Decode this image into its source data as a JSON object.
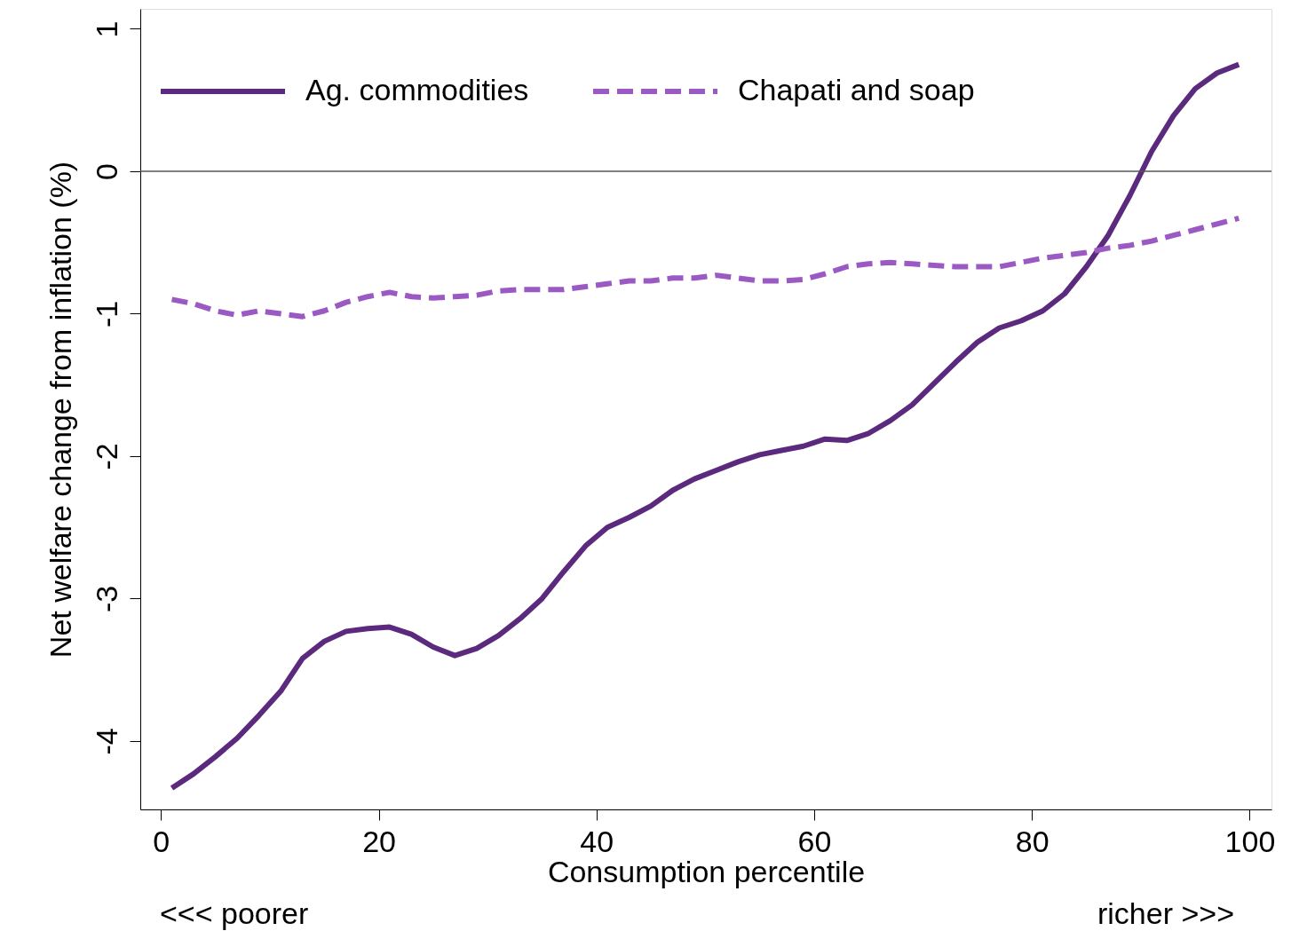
{
  "chart_data": {
    "type": "line",
    "xlabel": "Consumption percentile",
    "ylabel": "Net welfare change from inflation (%)",
    "x": [
      1,
      3,
      5,
      7,
      9,
      11,
      13,
      15,
      17,
      19,
      21,
      23,
      25,
      27,
      29,
      31,
      33,
      35,
      37,
      39,
      41,
      43,
      45,
      47,
      49,
      51,
      53,
      55,
      57,
      59,
      61,
      63,
      65,
      67,
      69,
      71,
      73,
      75,
      77,
      79,
      81,
      83,
      85,
      87,
      89,
      91,
      93,
      95,
      97,
      99
    ],
    "series": [
      {
        "name": "Ag. commodities",
        "color": "#5b2a7e",
        "line_style": "solid",
        "values": [
          -4.33,
          -4.23,
          -4.11,
          -3.98,
          -3.82,
          -3.65,
          -3.42,
          -3.3,
          -3.23,
          -3.21,
          -3.2,
          -3.25,
          -3.34,
          -3.4,
          -3.35,
          -3.26,
          -3.14,
          -3.0,
          -2.81,
          -2.63,
          -2.5,
          -2.43,
          -2.35,
          -2.24,
          -2.16,
          -2.1,
          -2.04,
          -1.99,
          -1.96,
          -1.93,
          -1.88,
          -1.89,
          -1.84,
          -1.75,
          -1.64,
          -1.49,
          -1.34,
          -1.2,
          -1.1,
          -1.05,
          -0.98,
          -0.86,
          -0.67,
          -0.45,
          -0.17,
          0.14,
          0.39,
          0.58,
          0.69,
          0.75
        ]
      },
      {
        "name": "Chapati and soap",
        "color": "#9b59c4",
        "line_style": "dashed",
        "values": [
          -0.9,
          -0.93,
          -0.98,
          -1.01,
          -0.98,
          -1.0,
          -1.02,
          -0.98,
          -0.92,
          -0.88,
          -0.85,
          -0.88,
          -0.89,
          -0.88,
          -0.87,
          -0.84,
          -0.83,
          -0.83,
          -0.83,
          -0.81,
          -0.79,
          -0.77,
          -0.77,
          -0.75,
          -0.75,
          -0.73,
          -0.75,
          -0.77,
          -0.77,
          -0.76,
          -0.72,
          -0.67,
          -0.65,
          -0.64,
          -0.65,
          -0.66,
          -0.67,
          -0.67,
          -0.67,
          -0.64,
          -0.61,
          -0.59,
          -0.57,
          -0.54,
          -0.52,
          -0.49,
          -0.45,
          -0.41,
          -0.37,
          -0.33
        ]
      }
    ],
    "xlim": [
      -1.9,
      102
    ],
    "ylim": [
      -4.48,
      1.14
    ],
    "xticks": [
      0,
      20,
      40,
      60,
      80,
      100
    ],
    "yticks": [
      -4,
      -3,
      -2,
      -1,
      0,
      1
    ],
    "ref_lines": [
      {
        "axis": "y",
        "value": 0,
        "color": "#555555",
        "line_style": "solid"
      }
    ],
    "annotations": [
      "<<< poorer",
      "richer >>>"
    ],
    "legend": "top left",
    "grid": false,
    "marker": "none"
  }
}
